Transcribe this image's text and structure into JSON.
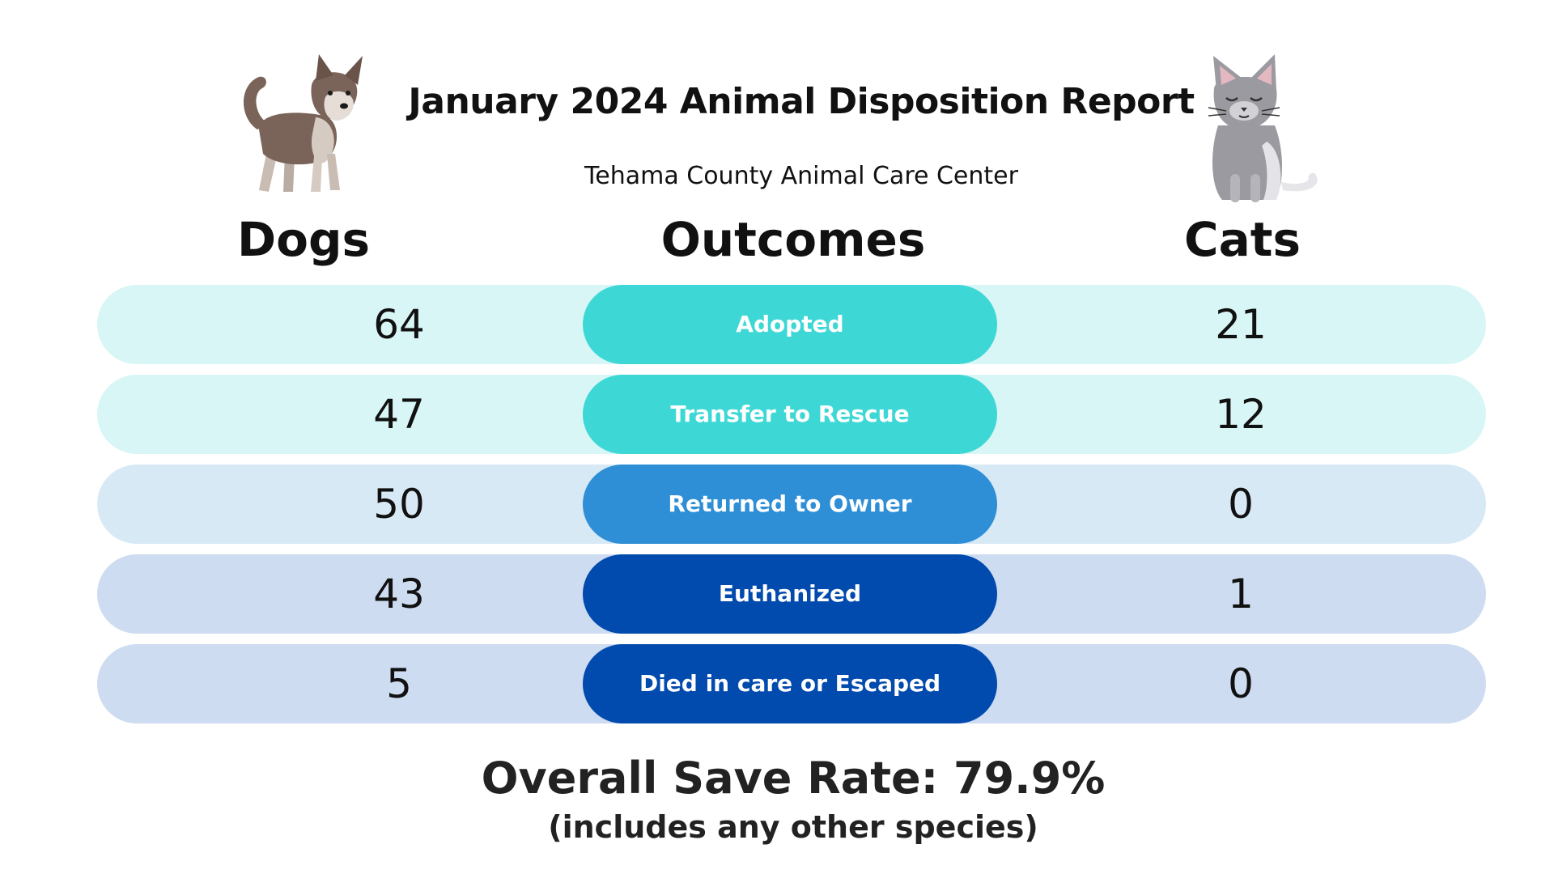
{
  "report": {
    "title": "January 2024 Animal Disposition Report",
    "subtitle": "Tehama County Animal Care Center"
  },
  "headers": {
    "dogs": "Dogs",
    "outcomes": "Outcomes",
    "cats": "Cats"
  },
  "rows": [
    {
      "outcome": "Adopted",
      "dogs": "64",
      "cats": "21",
      "row_color": "#d8f6f5",
      "pill_color": "#3dd8d6"
    },
    {
      "outcome": "Transfer to Rescue",
      "dogs": "47",
      "cats": "12",
      "row_color": "#d8f6f5",
      "pill_color": "#3dd8d6"
    },
    {
      "outcome": "Returned to Owner",
      "dogs": "50",
      "cats": "0",
      "row_color": "#d8e9f6",
      "pill_color": "#2e8fd6"
    },
    {
      "outcome": "Euthanized",
      "dogs": "43",
      "cats": "1",
      "row_color": "#cddcf1",
      "pill_color": "#014aae"
    },
    {
      "outcome": "Died in care or Escaped",
      "dogs": "5",
      "cats": "0",
      "row_color": "#cddcf1",
      "pill_color": "#014aae"
    }
  ],
  "save_rate": {
    "text": "Overall Save Rate:  79.9%",
    "note": "(includes any other species)"
  },
  "illustrations": {
    "dog": "dog-illustration",
    "cat": "cat-illustration"
  }
}
